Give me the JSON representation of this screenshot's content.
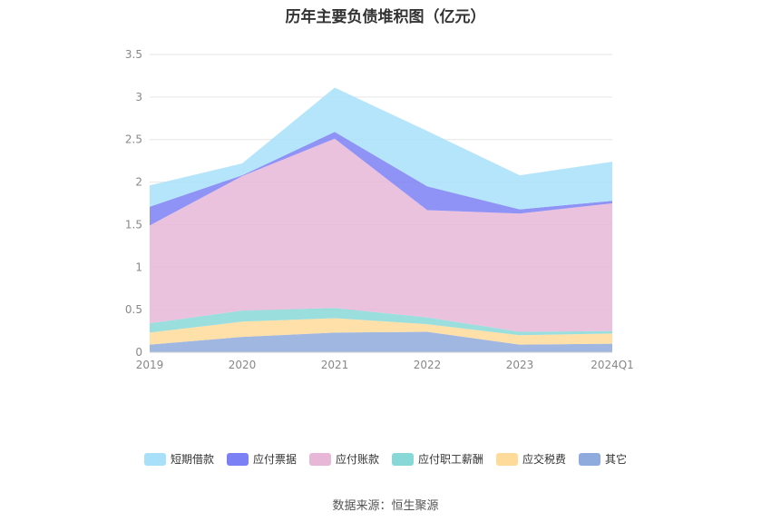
{
  "chart_data": {
    "type": "area",
    "title": "历年主要负债堆积图（亿元）",
    "categories": [
      "2019",
      "2020",
      "2021",
      "2022",
      "2023",
      "2024Q1"
    ],
    "y_ticks": [
      "0",
      "0.5",
      "1",
      "1.5",
      "2",
      "2.5",
      "3",
      "3.5"
    ],
    "ylim": [
      0,
      3.5
    ],
    "grid": true,
    "legend_position": "bottom",
    "stacked": true,
    "series": [
      {
        "name": "其它",
        "color": "#8FAADC",
        "values": [
          0.09,
          0.18,
          0.23,
          0.24,
          0.09,
          0.1
        ]
      },
      {
        "name": "应交税费",
        "color": "#FFDB9A",
        "values": [
          0.14,
          0.18,
          0.17,
          0.09,
          0.11,
          0.12
        ]
      },
      {
        "name": "应付职工薪酬",
        "color": "#88D8D8",
        "values": [
          0.11,
          0.13,
          0.12,
          0.08,
          0.04,
          0.03
        ]
      },
      {
        "name": "应付账款",
        "color": "#E8B7D7",
        "values": [
          1.15,
          1.58,
          1.99,
          1.26,
          1.39,
          1.5
        ]
      },
      {
        "name": "应付票据",
        "color": "#7B80F5",
        "values": [
          0.22,
          0.01,
          0.08,
          0.28,
          0.05,
          0.03
        ]
      },
      {
        "name": "短期借款",
        "color": "#A8E0FA",
        "values": [
          0.25,
          0.14,
          0.52,
          0.65,
          0.4,
          0.46
        ]
      }
    ]
  },
  "legend_order": [
    "短期借款",
    "应付票据",
    "应付账款",
    "应付职工薪酬",
    "应交税费",
    "其它"
  ],
  "footer": {
    "source": "数据来源：恒生聚源"
  }
}
